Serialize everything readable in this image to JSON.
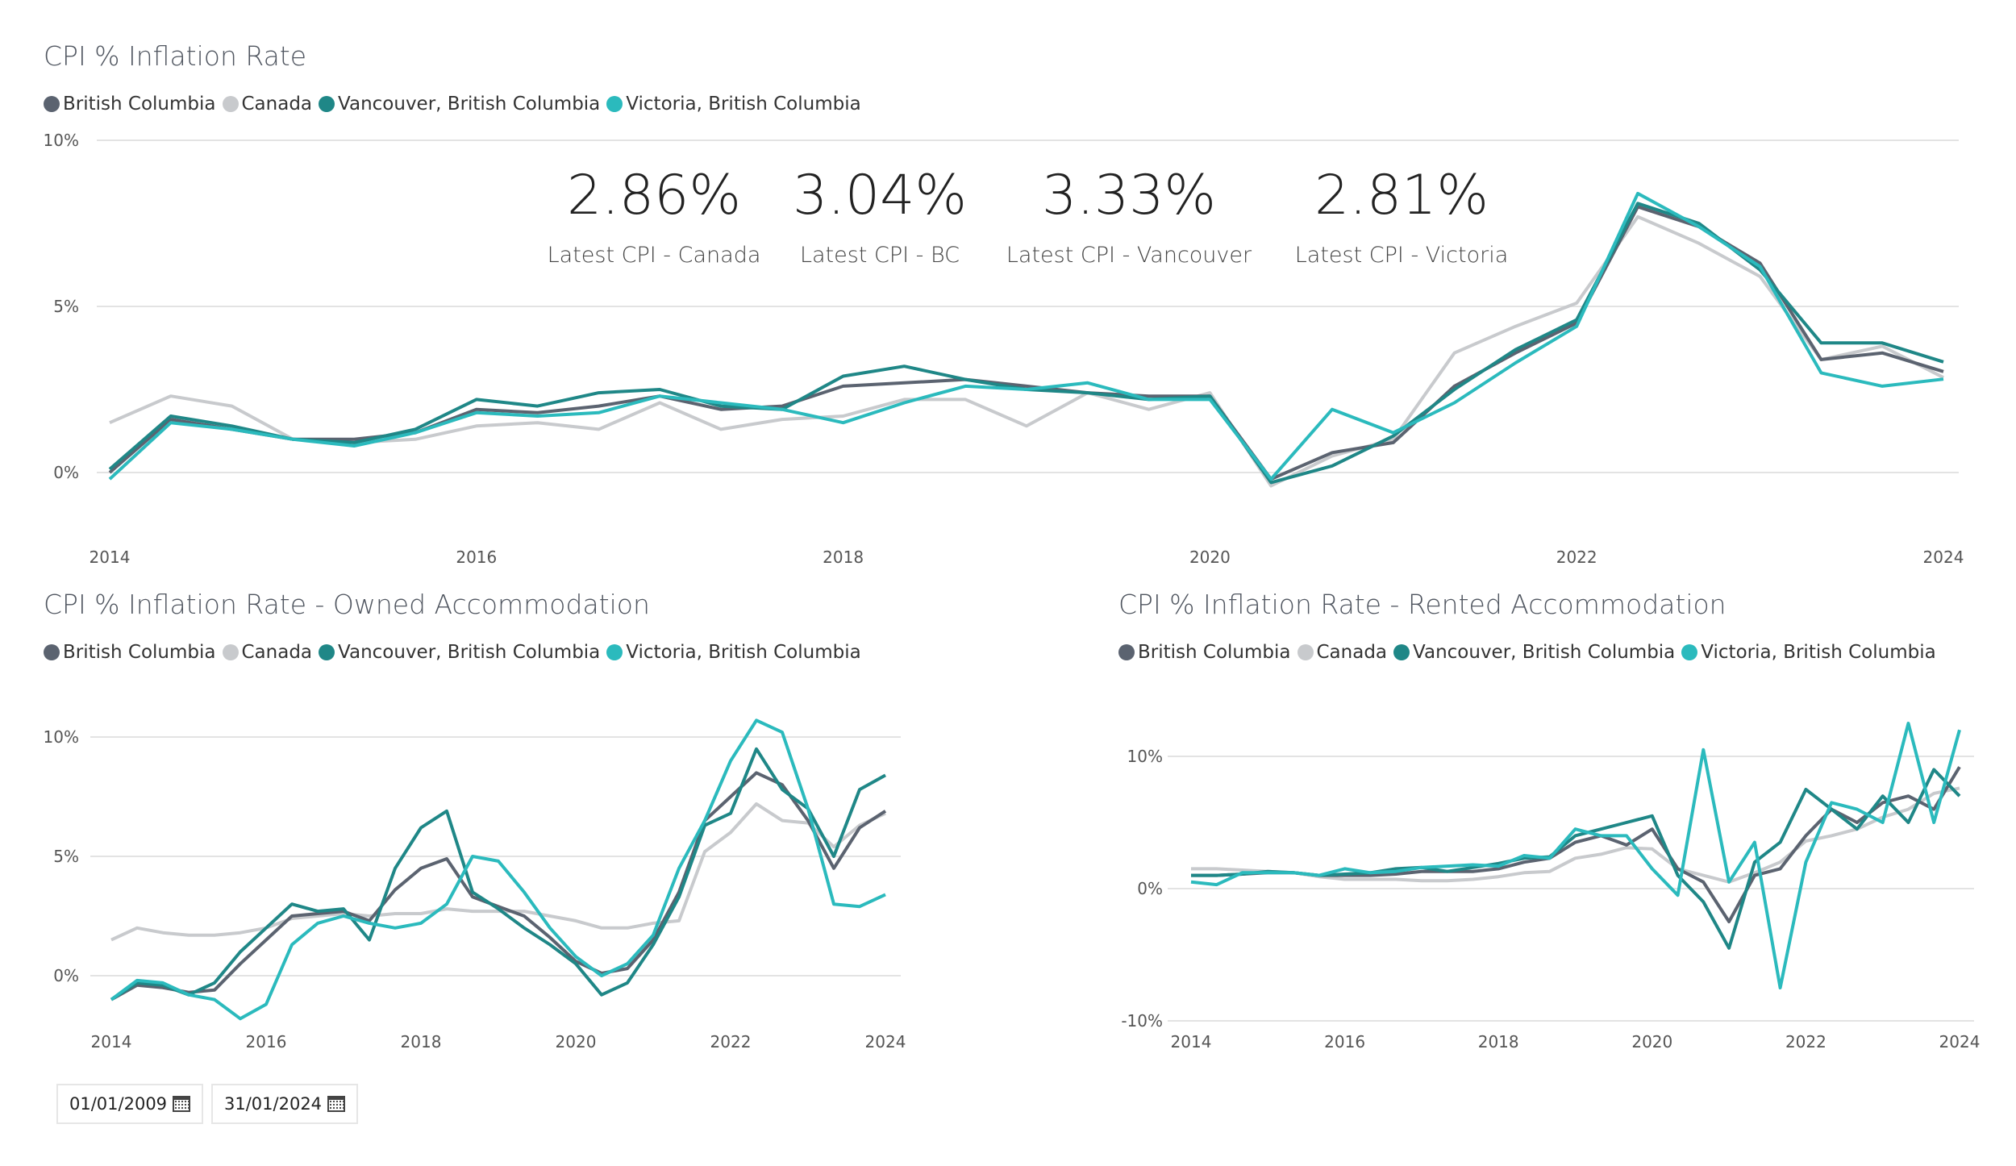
{
  "colors": {
    "British Columbia": "#5b6370",
    "Canada": "#c8cacd",
    "Vancouver, British Columbia": "#1f8787",
    "Victoria, British Columbia": "#2bbabd"
  },
  "legend": [
    "British Columbia",
    "Canada",
    "Vancouver, British Columbia",
    "Victoria, British Columbia"
  ],
  "kpis": [
    {
      "value": "2.86%",
      "label": "Latest CPI - Canada"
    },
    {
      "value": "3.04%",
      "label": "Latest CPI - BC"
    },
    {
      "value": "3.33%",
      "label": "Latest CPI - Vancouver"
    },
    {
      "value": "2.81%",
      "label": "Latest CPI - Victoria"
    }
  ],
  "date_range": {
    "start": "01/01/2009",
    "end": "31/01/2024",
    "icon": "calendar-icon"
  },
  "chart_data": [
    {
      "type": "line",
      "title": "CPI % Inflation Rate",
      "legend_position": "top-left",
      "grid": true,
      "ylim": [
        -1,
        10
      ],
      "yticks": [
        {
          "v": 0,
          "label": "0%"
        },
        {
          "v": 5,
          "label": "5%"
        },
        {
          "v": 10,
          "label": "10%"
        }
      ],
      "xticks": [
        "2014",
        "2016",
        "2018",
        "2020",
        "2022",
        "2024"
      ],
      "x": [
        "2014-01",
        "2014-05",
        "2014-09",
        "2015-01",
        "2015-05",
        "2015-09",
        "2016-01",
        "2016-05",
        "2016-09",
        "2017-01",
        "2017-05",
        "2017-09",
        "2018-01",
        "2018-05",
        "2018-09",
        "2019-01",
        "2019-05",
        "2019-09",
        "2020-01",
        "2020-05",
        "2020-09",
        "2021-01",
        "2021-05",
        "2021-09",
        "2022-01",
        "2022-05",
        "2022-09",
        "2023-01",
        "2023-05",
        "2023-09",
        "2024-01"
      ],
      "series": [
        {
          "name": "Canada",
          "values": [
            1.5,
            2.3,
            2.0,
            1.0,
            0.9,
            1.0,
            1.4,
            1.5,
            1.3,
            2.1,
            1.3,
            1.6,
            1.7,
            2.2,
            2.2,
            1.4,
            2.4,
            1.9,
            2.4,
            -0.4,
            0.5,
            1.0,
            3.6,
            4.4,
            5.1,
            7.7,
            6.9,
            5.9,
            3.4,
            3.8,
            2.86
          ]
        },
        {
          "name": "British Columbia",
          "values": [
            0.0,
            1.6,
            1.3,
            1.0,
            1.0,
            1.2,
            1.9,
            1.8,
            2.0,
            2.3,
            1.9,
            2.0,
            2.6,
            2.7,
            2.8,
            2.6,
            2.4,
            2.3,
            2.3,
            -0.2,
            0.6,
            0.9,
            2.6,
            3.6,
            4.5,
            8.0,
            7.4,
            6.3,
            3.4,
            3.6,
            3.04
          ]
        },
        {
          "name": "Vancouver, British Columbia",
          "values": [
            0.1,
            1.7,
            1.4,
            1.0,
            0.9,
            1.3,
            2.2,
            2.0,
            2.4,
            2.5,
            2.0,
            1.9,
            2.9,
            3.2,
            2.8,
            2.5,
            2.4,
            2.2,
            2.3,
            -0.3,
            0.2,
            1.1,
            2.5,
            3.7,
            4.6,
            8.1,
            7.5,
            6.1,
            3.9,
            3.9,
            3.33
          ]
        },
        {
          "name": "Victoria, British Columbia",
          "values": [
            -0.2,
            1.5,
            1.3,
            1.0,
            0.8,
            1.2,
            1.8,
            1.7,
            1.8,
            2.3,
            2.1,
            1.9,
            1.5,
            2.1,
            2.6,
            2.5,
            2.7,
            2.2,
            2.2,
            -0.2,
            1.9,
            1.2,
            2.1,
            3.3,
            4.4,
            8.4,
            7.4,
            6.2,
            3.0,
            2.6,
            2.81
          ]
        }
      ]
    },
    {
      "type": "line",
      "title": "CPI % Inflation Rate - Owned Accommodation",
      "legend_position": "top-left",
      "grid": true,
      "ylim": [
        -2,
        11.5
      ],
      "yticks": [
        {
          "v": 0,
          "label": "0%"
        },
        {
          "v": 5,
          "label": "5%"
        },
        {
          "v": 10,
          "label": "10%"
        }
      ],
      "xticks": [
        "2014",
        "2016",
        "2018",
        "2020",
        "2022",
        "2024"
      ],
      "x": [
        "2014-01",
        "2014-05",
        "2014-09",
        "2015-01",
        "2015-05",
        "2015-09",
        "2016-01",
        "2016-05",
        "2016-09",
        "2017-01",
        "2017-05",
        "2017-09",
        "2018-01",
        "2018-05",
        "2018-09",
        "2019-01",
        "2019-05",
        "2019-09",
        "2020-01",
        "2020-05",
        "2020-09",
        "2021-01",
        "2021-05",
        "2021-09",
        "2022-01",
        "2022-05",
        "2022-09",
        "2023-01",
        "2023-05",
        "2023-09",
        "2024-01"
      ],
      "series": [
        {
          "name": "Canada",
          "values": [
            1.5,
            2.0,
            1.8,
            1.7,
            1.7,
            1.8,
            2.0,
            2.4,
            2.5,
            2.6,
            2.5,
            2.6,
            2.6,
            2.8,
            2.7,
            2.7,
            2.7,
            2.5,
            2.3,
            2.0,
            2.0,
            2.2,
            2.3,
            5.2,
            6.0,
            7.2,
            6.5,
            6.4,
            5.4,
            6.3,
            6.8
          ]
        },
        {
          "name": "British Columbia",
          "values": [
            -1.0,
            -0.4,
            -0.5,
            -0.7,
            -0.6,
            0.5,
            1.5,
            2.5,
            2.6,
            2.7,
            2.3,
            3.6,
            4.5,
            4.9,
            3.3,
            2.9,
            2.5,
            1.6,
            0.6,
            0.1,
            0.3,
            1.5,
            3.5,
            6.5,
            7.5,
            8.5,
            8.0,
            6.5,
            4.5,
            6.2,
            6.9
          ]
        },
        {
          "name": "Vancouver, British Columbia",
          "values": [
            -1.0,
            -0.3,
            -0.4,
            -0.8,
            -0.3,
            1.0,
            2.0,
            3.0,
            2.7,
            2.8,
            1.5,
            4.5,
            6.2,
            6.9,
            3.5,
            2.8,
            2.0,
            1.3,
            0.5,
            -0.8,
            -0.3,
            1.3,
            3.3,
            6.3,
            6.8,
            9.5,
            7.8,
            7.0,
            5.0,
            7.8,
            8.4
          ]
        },
        {
          "name": "Victoria, British Columbia",
          "values": [
            -1.0,
            -0.2,
            -0.3,
            -0.8,
            -1.0,
            -1.8,
            -1.2,
            1.3,
            2.2,
            2.5,
            2.2,
            2.0,
            2.2,
            3.0,
            5.0,
            4.8,
            3.5,
            2.0,
            0.8,
            0.0,
            0.5,
            1.7,
            4.5,
            6.5,
            9.0,
            10.7,
            10.2,
            7.0,
            3.0,
            2.9,
            3.4
          ]
        }
      ]
    },
    {
      "type": "line",
      "title": "CPI % Inflation Rate - Rented Accommodation",
      "legend_position": "top-left",
      "grid": true,
      "ylim": [
        -10,
        14
      ],
      "yticks": [
        {
          "v": -10,
          "label": "-10%"
        },
        {
          "v": 0,
          "label": "0%"
        },
        {
          "v": 10,
          "label": "10%"
        }
      ],
      "xticks": [
        "2014",
        "2016",
        "2018",
        "2020",
        "2022",
        "2024"
      ],
      "x": [
        "2014-01",
        "2014-05",
        "2014-09",
        "2015-01",
        "2015-05",
        "2015-09",
        "2016-01",
        "2016-05",
        "2016-09",
        "2017-01",
        "2017-05",
        "2017-09",
        "2018-01",
        "2018-05",
        "2018-09",
        "2019-01",
        "2019-05",
        "2019-09",
        "2020-01",
        "2020-05",
        "2020-09",
        "2021-01",
        "2021-05",
        "2021-09",
        "2022-01",
        "2022-05",
        "2022-09",
        "2023-01",
        "2023-05",
        "2023-09",
        "2024-01"
      ],
      "series": [
        {
          "name": "Canada",
          "values": [
            1.5,
            1.5,
            1.4,
            1.3,
            1.2,
            0.9,
            0.7,
            0.7,
            0.7,
            0.6,
            0.6,
            0.7,
            0.9,
            1.2,
            1.3,
            2.3,
            2.6,
            3.1,
            3.0,
            1.5,
            1.0,
            0.5,
            1.2,
            2.0,
            3.6,
            4.0,
            4.5,
            5.4,
            6.0,
            7.2,
            7.6
          ]
        },
        {
          "name": "British Columbia",
          "values": [
            1.0,
            1.0,
            1.1,
            1.2,
            1.2,
            1.0,
            1.0,
            1.0,
            1.1,
            1.3,
            1.3,
            1.3,
            1.5,
            2.0,
            2.3,
            3.5,
            4.0,
            3.3,
            4.5,
            1.5,
            0.5,
            -2.5,
            1.0,
            1.5,
            4.0,
            6.0,
            5.0,
            6.5,
            7.0,
            6.0,
            9.2
          ]
        },
        {
          "name": "Vancouver, British Columbia",
          "values": [
            1.0,
            1.0,
            1.1,
            1.3,
            1.2,
            1.0,
            1.1,
            1.2,
            1.5,
            1.6,
            1.3,
            1.6,
            1.9,
            2.3,
            2.4,
            4.0,
            4.5,
            5.0,
            5.5,
            1.0,
            -1.0,
            -4.5,
            2.0,
            3.5,
            7.5,
            6.0,
            4.5,
            7.0,
            5.0,
            9.0,
            7.0
          ]
        },
        {
          "name": "Victoria, British Columbia",
          "values": [
            0.5,
            0.3,
            1.2,
            1.2,
            1.2,
            1.0,
            1.5,
            1.2,
            1.3,
            1.6,
            1.7,
            1.8,
            1.7,
            2.5,
            2.3,
            4.5,
            4.0,
            4.0,
            1.5,
            -0.5,
            10.5,
            0.5,
            3.5,
            -7.5,
            2.0,
            6.5,
            6.0,
            5.0,
            12.5,
            5.0,
            12.0
          ]
        }
      ]
    }
  ]
}
